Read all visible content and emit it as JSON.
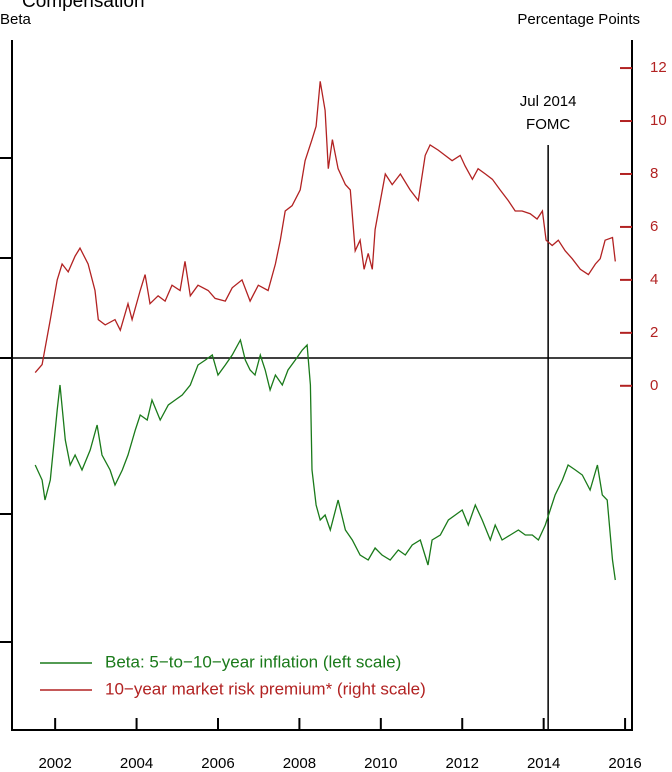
{
  "chart_data": {
    "type": "line",
    "title": "Compensation",
    "y_label": "Beta",
    "y2_label": "Percentage Points",
    "xlim": [
      2000.94,
      2016.17
    ],
    "xticks": [
      2002,
      2004,
      2006,
      2008,
      2010,
      2012,
      2014,
      2016
    ],
    "ylim": [
      -0.744,
      0.636
    ],
    "yticks": [
      0.4,
      0.2,
      0,
      -0.312,
      -0.568
    ],
    "y2lim": [
      -13,
      13.06
    ],
    "y2ticks": [
      0,
      2,
      4,
      6,
      8,
      10,
      12
    ],
    "zero_line": 0,
    "legend": "lower left",
    "annotation": {
      "x": 2014.11,
      "lines": [
        "Jul 2014",
        "FOMC"
      ]
    },
    "series": [
      {
        "name": "Beta: 5−to−10−year inflation (left scale)",
        "color": "#1a7a1a",
        "axis": "y",
        "x": [
          2001.51,
          2001.68,
          2001.75,
          2001.88,
          2002.05,
          2002.12,
          2002.25,
          2002.37,
          2002.49,
          2002.66,
          2002.86,
          2003.03,
          2003.15,
          2003.35,
          2003.47,
          2003.65,
          2003.79,
          2003.97,
          2004.09,
          2004.26,
          2004.38,
          2004.58,
          2004.78,
          2004.95,
          2005.12,
          2005.32,
          2005.51,
          2005.69,
          2005.86,
          2006.0,
          2006.18,
          2006.35,
          2006.55,
          2006.67,
          2006.79,
          2006.91,
          2007.04,
          2007.16,
          2007.28,
          2007.41,
          2007.58,
          2007.72,
          2007.9,
          2008.07,
          2008.19,
          2008.27,
          2008.31,
          2008.41,
          2008.51,
          2008.63,
          2008.76,
          2008.95,
          2009.13,
          2009.3,
          2009.49,
          2009.69,
          2009.86,
          2010.03,
          2010.23,
          2010.43,
          2010.6,
          2010.77,
          2010.97,
          2011.16,
          2011.26,
          2011.46,
          2011.66,
          2011.83,
          2012.0,
          2012.15,
          2012.32,
          2012.49,
          2012.69,
          2012.81,
          2012.98,
          2013.18,
          2013.38,
          2013.55,
          2013.72,
          2013.87,
          2014.04,
          2014.16,
          2014.28,
          2014.46,
          2014.6,
          2014.78,
          2014.95,
          2015.14,
          2015.32,
          2015.44,
          2015.56,
          2015.69,
          2015.76
        ],
        "values": [
          -0.214,
          -0.244,
          -0.284,
          -0.244,
          -0.104,
          -0.054,
          -0.164,
          -0.214,
          -0.194,
          -0.224,
          -0.184,
          -0.134,
          -0.194,
          -0.224,
          -0.254,
          -0.224,
          -0.194,
          -0.144,
          -0.114,
          -0.124,
          -0.084,
          -0.124,
          -0.094,
          -0.084,
          -0.074,
          -0.054,
          -0.014,
          -0.004,
          0.006,
          -0.034,
          -0.014,
          0.006,
          0.036,
          -0.004,
          -0.024,
          -0.034,
          0.006,
          -0.024,
          -0.064,
          -0.034,
          -0.054,
          -0.024,
          -0.004,
          0.016,
          0.026,
          -0.054,
          -0.224,
          -0.294,
          -0.324,
          -0.314,
          -0.344,
          -0.284,
          -0.344,
          -0.364,
          -0.394,
          -0.404,
          -0.38,
          -0.394,
          -0.404,
          -0.384,
          -0.394,
          -0.374,
          -0.364,
          -0.414,
          -0.364,
          -0.354,
          -0.324,
          -0.314,
          -0.304,
          -0.334,
          -0.294,
          -0.324,
          -0.364,
          -0.334,
          -0.364,
          -0.354,
          -0.344,
          -0.354,
          -0.354,
          -0.364,
          -0.334,
          -0.304,
          -0.274,
          -0.244,
          -0.214,
          -0.224,
          -0.234,
          -0.264,
          -0.214,
          -0.274,
          -0.284,
          -0.404,
          -0.444
        ]
      },
      {
        "name": "10−year market risk premium* (right scale)",
        "color": "#b22222",
        "axis": "y2",
        "x": [
          2001.51,
          2001.68,
          2001.88,
          2002.05,
          2002.17,
          2002.32,
          2002.49,
          2002.61,
          2002.81,
          2002.98,
          2003.06,
          2003.23,
          2003.47,
          2003.6,
          2003.79,
          2003.89,
          2004.09,
          2004.21,
          2004.33,
          2004.53,
          2004.7,
          2004.87,
          2005.07,
          2005.19,
          2005.32,
          2005.51,
          2005.76,
          2005.93,
          2006.18,
          2006.35,
          2006.59,
          2006.79,
          2006.99,
          2007.23,
          2007.41,
          2007.53,
          2007.65,
          2007.82,
          2008.02,
          2008.14,
          2008.31,
          2008.41,
          2008.51,
          2008.63,
          2008.71,
          2008.81,
          2008.95,
          2009.13,
          2009.25,
          2009.37,
          2009.49,
          2009.59,
          2009.69,
          2009.79,
          2009.86,
          2009.99,
          2010.11,
          2010.28,
          2010.48,
          2010.72,
          2010.92,
          2011.09,
          2011.21,
          2011.41,
          2011.58,
          2011.75,
          2011.95,
          2012.07,
          2012.25,
          2012.39,
          2012.57,
          2012.74,
          2012.93,
          2013.13,
          2013.3,
          2013.47,
          2013.67,
          2013.84,
          2013.97,
          2014.06,
          2014.21,
          2014.36,
          2014.53,
          2014.7,
          2014.9,
          2015.1,
          2015.27,
          2015.39,
          2015.51,
          2015.69,
          2015.76
        ],
        "values": [
          0.5,
          0.8,
          2.5,
          4.0,
          4.6,
          4.3,
          4.9,
          5.2,
          4.6,
          3.6,
          2.5,
          2.3,
          2.5,
          2.1,
          3.1,
          2.5,
          3.6,
          4.2,
          3.1,
          3.4,
          3.2,
          3.8,
          3.6,
          4.7,
          3.4,
          3.8,
          3.6,
          3.3,
          3.2,
          3.7,
          4.0,
          3.2,
          3.8,
          3.6,
          4.6,
          5.5,
          6.6,
          6.8,
          7.4,
          8.5,
          9.3,
          9.8,
          11.5,
          10.4,
          8.2,
          9.3,
          8.2,
          7.6,
          7.4,
          5.1,
          5.5,
          4.4,
          5.0,
          4.4,
          5.9,
          7.0,
          8.0,
          7.6,
          8.0,
          7.4,
          7.0,
          8.7,
          9.1,
          8.9,
          8.7,
          8.5,
          8.7,
          8.3,
          7.8,
          8.2,
          8.0,
          7.8,
          7.4,
          7.0,
          6.6,
          6.6,
          6.5,
          6.3,
          6.6,
          5.5,
          5.3,
          5.5,
          5.1,
          4.8,
          4.4,
          4.2,
          4.6,
          4.8,
          5.5,
          5.6,
          4.7
        ]
      }
    ]
  }
}
